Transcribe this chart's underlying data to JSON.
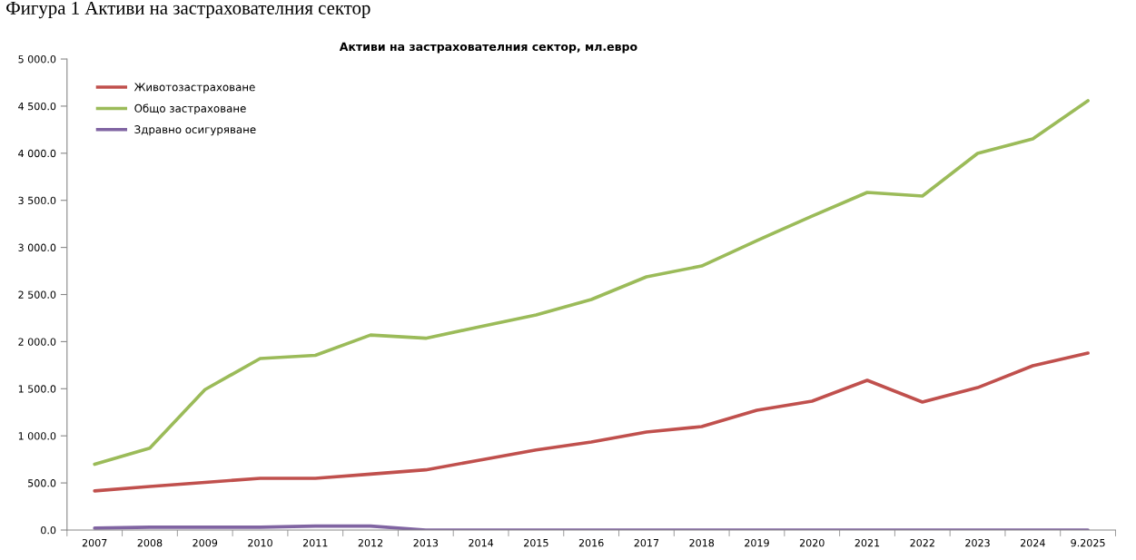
{
  "chart_data": {
    "type": "line",
    "title": "Активи на застрахователния сектор, мл.евро",
    "annotations": [
      "Фигура 1 Активи на застрахователния сектор"
    ],
    "categories": [
      "2007",
      "2008",
      "2009",
      "2010",
      "2011",
      "2012",
      "2013",
      "2014",
      "2015",
      "2016",
      "2017",
      "2018",
      "2019",
      "2020",
      "2021",
      "2022",
      "2023",
      "2024",
      "9.2025"
    ],
    "series": [
      {
        "name": "Животозастраховане",
        "color": "#c0504d",
        "values": [
          415,
          462,
          506,
          549,
          549,
          594,
          639,
          745,
          850,
          935,
          1040,
          1098,
          1272,
          1368,
          1590,
          1358,
          1512,
          1744,
          1879
        ]
      },
      {
        "name": "Общо застраховане",
        "color": "#9bbb59",
        "values": [
          698,
          869,
          1491,
          1821,
          1855,
          2070,
          2036,
          2160,
          2283,
          2447,
          2688,
          2803,
          3073,
          3333,
          3584,
          3545,
          3998,
          4152,
          4557
        ]
      },
      {
        "name": "Здравно осигуряване",
        "color": "#8064a2",
        "values": [
          20,
          30,
          30,
          30,
          42,
          42,
          0,
          0,
          0,
          0,
          0,
          0,
          0,
          0,
          0,
          0,
          0,
          0,
          0
        ]
      }
    ],
    "ylim": [
      0,
      5000
    ],
    "yticks": [
      {
        "value": 0,
        "label": "0.0"
      },
      {
        "value": 500,
        "label": "500.0"
      },
      {
        "value": 1000,
        "label": "1 000.0"
      },
      {
        "value": 1500,
        "label": "1 500.0"
      },
      {
        "value": 2000,
        "label": "2 000.0"
      },
      {
        "value": 2500,
        "label": "2 500.0"
      },
      {
        "value": 3000,
        "label": "3 000.0"
      },
      {
        "value": 3500,
        "label": "3 500.0"
      },
      {
        "value": 4000,
        "label": "4 000.0"
      },
      {
        "value": 4500,
        "label": "4 500.0"
      },
      {
        "value": 5000,
        "label": "5 000.0"
      }
    ],
    "grid": false,
    "legend": "top left",
    "marker": "none",
    "line_style": "solid"
  }
}
